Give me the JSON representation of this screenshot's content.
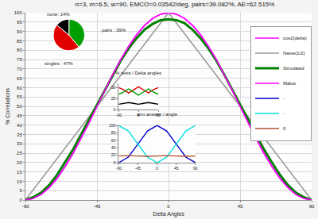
{
  "chart_data": [
    {
      "type": "line",
      "title": "n=3, m=6.5, w=90, EMCO=0.03542/deg, pairs=39.082%, AE=62.515%",
      "x_label": "Delta Angles",
      "y_label": "% Correlations",
      "xlim": [
        -90,
        90
      ],
      "xticks": [
        -90,
        -45,
        0,
        45,
        90
      ],
      "ylim": [
        0,
        100
      ],
      "yticks": [
        0,
        5,
        10,
        15,
        20,
        25,
        30,
        35,
        40,
        45,
        50,
        55,
        60,
        65,
        70,
        75,
        80,
        85,
        90,
        95,
        100
      ],
      "grid": true,
      "legend": "top right",
      "series": [
        {
          "name": "cos2(delta)",
          "color": "#ff00ff",
          "x": [
            -90,
            -85,
            -80,
            -75,
            -70,
            -65,
            -60,
            -55,
            -50,
            -45,
            -40,
            -35,
            -30,
            -25,
            -20,
            -15,
            -10,
            -5,
            0,
            5,
            10,
            15,
            20,
            25,
            30,
            35,
            40,
            45,
            50,
            55,
            60,
            65,
            70,
            75,
            80,
            85,
            90
          ],
          "values": [
            0,
            0.8,
            3.0,
            6.7,
            11.7,
            17.9,
            25,
            32.9,
            41.3,
            50,
            58.7,
            67.1,
            75,
            82.1,
            88.3,
            93.3,
            97.0,
            99.2,
            100,
            99.2,
            97.0,
            93.3,
            88.3,
            82.1,
            75,
            67.1,
            58.7,
            50,
            41.3,
            32.9,
            25,
            17.9,
            11.7,
            6.7,
            3.0,
            0.8,
            0
          ]
        },
        {
          "name": "Naive(1/2)",
          "color": "#999999",
          "x": [
            -90,
            0,
            90
          ],
          "values": [
            0,
            100,
            0
          ]
        },
        {
          "name": "Simulated",
          "color": "#008000",
          "x": [
            -90,
            -85,
            -80,
            -75,
            -70,
            -65,
            -60,
            -55,
            -50,
            -45,
            -40,
            -35,
            -30,
            -25,
            -20,
            -15,
            -10,
            -5,
            0,
            5,
            10,
            15,
            20,
            25,
            30,
            35,
            40,
            45,
            50,
            55,
            60,
            65,
            70,
            75,
            80,
            85,
            90
          ],
          "values": [
            0,
            1.5,
            4,
            8,
            13.5,
            20,
            27,
            35,
            43,
            51,
            59,
            67,
            74.5,
            81,
            86.5,
            91,
            94,
            96,
            96.5,
            96,
            94.5,
            91,
            86.5,
            81,
            74.5,
            67,
            59,
            51,
            43,
            35,
            27,
            20,
            13.5,
            8,
            4,
            1.5,
            0
          ]
        },
        {
          "name": "Malus",
          "color": "#ff00ff",
          "x": [
            -90,
            -85,
            -80,
            -75,
            -70,
            -65,
            -60,
            -55,
            -50,
            -45,
            -40,
            -35,
            -30,
            -25,
            -20,
            -15,
            -10,
            -5,
            0,
            5,
            10,
            15,
            20,
            25,
            30,
            35,
            40,
            45,
            50,
            55,
            60,
            65,
            70,
            75,
            80,
            85,
            90
          ],
          "values": [
            0,
            0.8,
            3.0,
            6.7,
            11.7,
            17.9,
            25,
            32.9,
            41.3,
            50,
            58.7,
            67.1,
            75,
            82.1,
            88.3,
            93.3,
            97.0,
            99.2,
            100,
            99.2,
            97.0,
            93.3,
            88.3,
            82.1,
            75,
            67.1,
            58.7,
            50,
            41.3,
            32.9,
            25,
            17.9,
            11.7,
            6.7,
            3.0,
            0.8,
            0
          ]
        }
      ]
    },
    {
      "type": "pie",
      "categories": [
        "pairs",
        "singles",
        "none"
      ],
      "values": [
        39,
        47,
        14
      ],
      "value_labels": [
        "pairs : 39%",
        "singles : 47%",
        "none: 14%"
      ],
      "colors": [
        "#00a000",
        "#e00000",
        "#000000"
      ]
    },
    {
      "type": "line",
      "title": "% tests / Delta angles",
      "xlim": [
        -90,
        90
      ],
      "xticks": [
        -90,
        0,
        90
      ],
      "ylim": [
        0,
        60
      ],
      "yticks": [
        0,
        25,
        50
      ],
      "grid": false,
      "series": [
        {
          "color": "#e00000",
          "x": [
            -90,
            -67.5,
            -45,
            -22.5,
            0,
            22.5,
            45,
            67.5,
            90
          ],
          "values": [
            50,
            45,
            38,
            45,
            52,
            45,
            38,
            45,
            50
          ]
        },
        {
          "color": "#00a000",
          "x": [
            -90,
            -67.5,
            -45,
            -22.5,
            0,
            22.5,
            45,
            67.5,
            90
          ],
          "values": [
            35,
            40,
            47,
            40,
            33,
            40,
            47,
            40,
            35
          ]
        },
        {
          "color": "#000000",
          "x": [
            -90,
            -67.5,
            -45,
            -22.5,
            0,
            22.5,
            45,
            67.5,
            90
          ],
          "values": [
            12,
            14,
            16,
            14,
            12,
            14,
            16,
            14,
            12
          ]
        }
      ]
    },
    {
      "type": "line",
      "title": "arm answer / angle",
      "xlim": [
        -90,
        90
      ],
      "xticks": [
        -90,
        -45,
        0,
        45,
        90
      ],
      "ylim": [
        0,
        100
      ],
      "yticks": [
        0,
        20,
        40,
        60,
        80,
        100
      ],
      "grid": false,
      "series": [
        {
          "name": "-",
          "color": "#0000cc",
          "x": [
            -90,
            -67.5,
            -45,
            -22.5,
            0,
            22.5,
            45,
            67.5,
            90
          ],
          "values": [
            0,
            15,
            50,
            85,
            100,
            85,
            50,
            15,
            0
          ]
        },
        {
          "name": "-",
          "color": "#00dddd",
          "x": [
            -90,
            -67.5,
            -45,
            -22.5,
            0,
            22.5,
            45,
            67.5,
            90
          ],
          "values": [
            100,
            85,
            50,
            15,
            0,
            15,
            50,
            85,
            100
          ]
        },
        {
          "name": "0",
          "color": "#b05030",
          "x": [
            -90,
            -67.5,
            -45,
            -22.5,
            0,
            22.5,
            45,
            67.5,
            90
          ],
          "values": [
            18,
            19,
            18,
            17,
            18,
            19,
            18,
            17,
            18
          ]
        }
      ]
    }
  ]
}
